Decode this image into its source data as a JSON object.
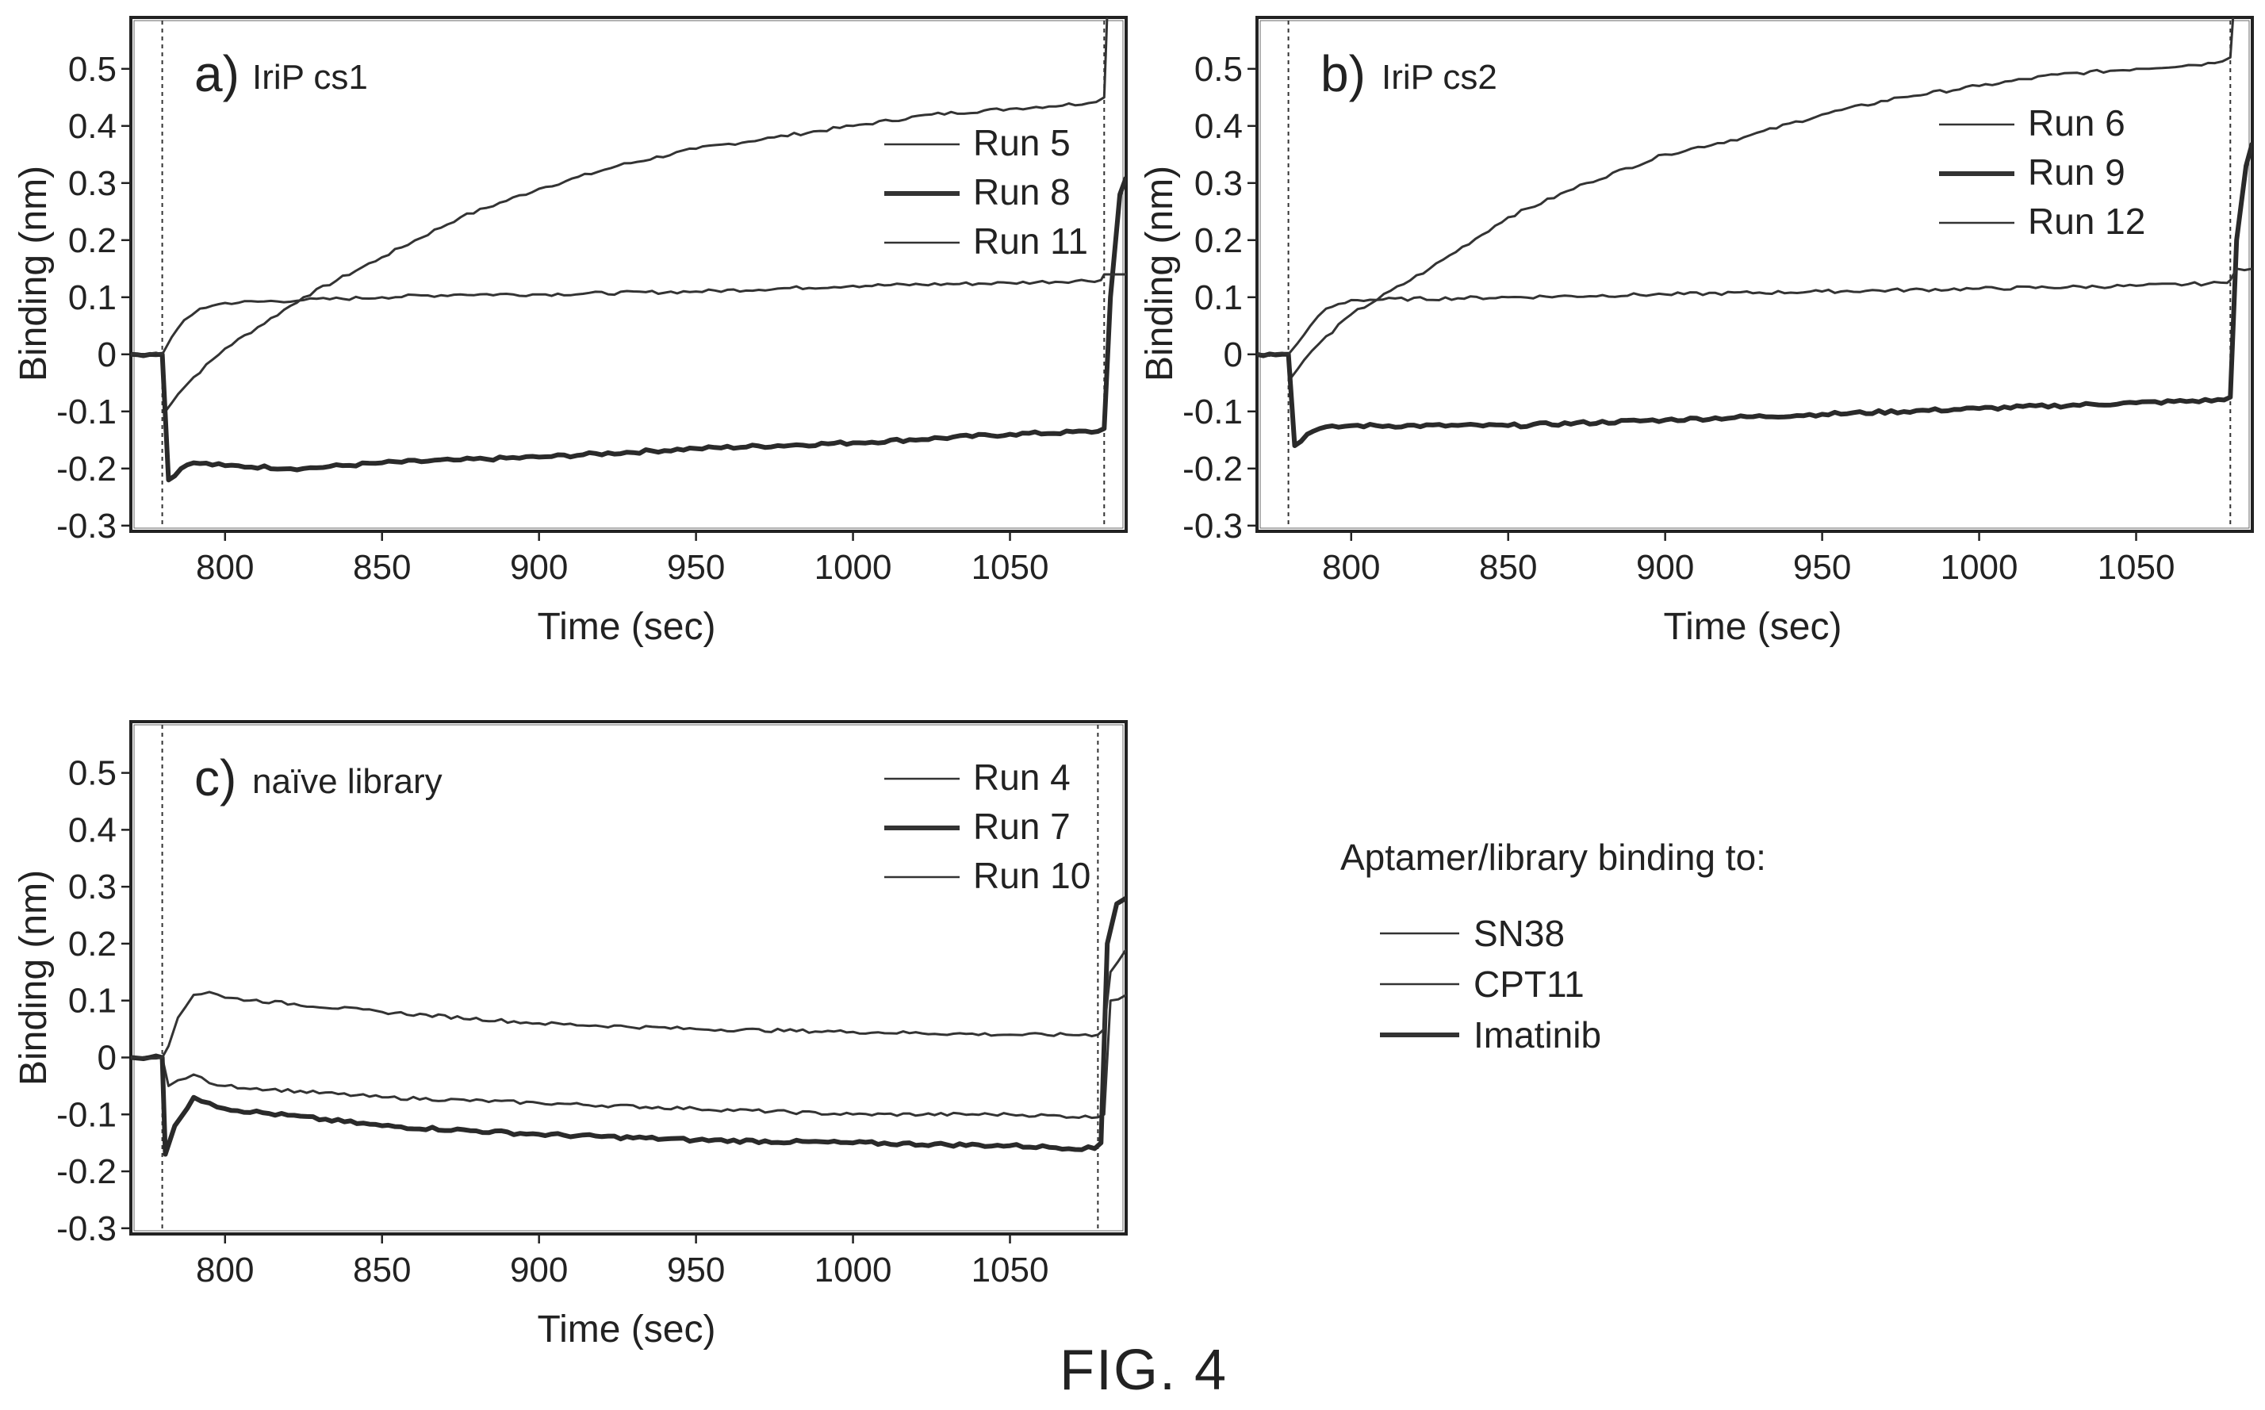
{
  "figure_label": "FIG. 4",
  "shared_legend": {
    "title": "Aptamer/library binding to:",
    "entries": [
      {
        "label": "SN38",
        "style": "thin"
      },
      {
        "label": "CPT11",
        "style": "thin"
      },
      {
        "label": "Imatinib",
        "style": "thick"
      }
    ]
  },
  "chart_data": [
    {
      "type": "line",
      "panel_letter": "a)",
      "panel_title": "IriP cs1",
      "xlabel": "Time (sec)",
      "ylabel": "Binding (nm)",
      "xlim": [
        770,
        1087
      ],
      "ylim": [
        -0.31,
        0.59
      ],
      "x_ticks": [
        800,
        850,
        900,
        950,
        1000,
        1050
      ],
      "y_ticks": [
        -0.3,
        -0.2,
        -0.1,
        0,
        0.1,
        0.2,
        0.3,
        0.4,
        0.5
      ],
      "y_tick_labels": [
        "-0.3",
        "-0.2",
        "-0.1",
        "0",
        "0.1",
        "0.2",
        "0.3",
        "0.4",
        "0.5"
      ],
      "vlines": [
        780,
        1080
      ],
      "legend": [
        "Run 5",
        "Run 8",
        "Run 11"
      ],
      "series": [
        {
          "name": "Run 5",
          "style": "thin",
          "x": [
            770,
            780,
            781,
            785,
            790,
            800,
            825,
            850,
            875,
            900,
            925,
            950,
            975,
            1000,
            1025,
            1050,
            1075,
            1080,
            1081,
            1087
          ],
          "y": [
            0,
            0,
            -0.1,
            -0.07,
            -0.04,
            0.01,
            0.1,
            0.17,
            0.24,
            0.29,
            0.33,
            0.36,
            0.38,
            0.4,
            0.42,
            0.43,
            0.44,
            0.45,
            0.6,
            0.6
          ]
        },
        {
          "name": "Run 8",
          "style": "thick",
          "x": [
            770,
            780,
            782,
            786,
            790,
            800,
            825,
            850,
            875,
            900,
            950,
            1000,
            1050,
            1078,
            1080,
            1082,
            1085,
            1087
          ],
          "y": [
            0,
            0,
            -0.22,
            -0.2,
            -0.19,
            -0.195,
            -0.2,
            -0.19,
            -0.185,
            -0.18,
            -0.165,
            -0.155,
            -0.14,
            -0.135,
            -0.13,
            0.1,
            0.28,
            0.31
          ]
        },
        {
          "name": "Run 11",
          "style": "thin",
          "x": [
            770,
            780,
            783,
            787,
            792,
            800,
            825,
            850,
            875,
            900,
            950,
            1000,
            1050,
            1079,
            1080,
            1082,
            1087
          ],
          "y": [
            0,
            0,
            0.03,
            0.06,
            0.08,
            0.09,
            0.095,
            0.1,
            0.105,
            0.105,
            0.11,
            0.12,
            0.125,
            0.13,
            0.14,
            0.14,
            0.14
          ]
        }
      ]
    },
    {
      "type": "line",
      "panel_letter": "b)",
      "panel_title": "IriP cs2",
      "xlabel": "Time (sec)",
      "ylabel": "Binding (nm)",
      "xlim": [
        770,
        1087
      ],
      "ylim": [
        -0.31,
        0.59
      ],
      "x_ticks": [
        800,
        850,
        900,
        950,
        1000,
        1050
      ],
      "y_ticks": [
        -0.3,
        -0.2,
        -0.1,
        0,
        0.1,
        0.2,
        0.3,
        0.4,
        0.5
      ],
      "y_tick_labels": [
        "-0.3",
        "-0.2",
        "-0.1",
        "0",
        "0.1",
        "0.2",
        "0.3",
        "0.4",
        "0.5"
      ],
      "vlines": [
        780,
        1080
      ],
      "legend": [
        "Run 6",
        "Run 9",
        "Run 12"
      ],
      "series": [
        {
          "name": "Run 6",
          "style": "thin",
          "x": [
            770,
            780,
            781,
            785,
            790,
            800,
            825,
            850,
            875,
            900,
            925,
            950,
            975,
            1000,
            1025,
            1050,
            1075,
            1080,
            1081,
            1087
          ],
          "y": [
            0,
            0,
            -0.04,
            -0.01,
            0.02,
            0.07,
            0.15,
            0.24,
            0.3,
            0.35,
            0.38,
            0.42,
            0.45,
            0.47,
            0.49,
            0.5,
            0.51,
            0.52,
            0.6,
            0.6
          ]
        },
        {
          "name": "Run 9",
          "style": "thick",
          "x": [
            770,
            780,
            782,
            786,
            790,
            800,
            850,
            900,
            950,
            1000,
            1050,
            1078,
            1080,
            1082,
            1085,
            1087
          ],
          "y": [
            0,
            0,
            -0.16,
            -0.14,
            -0.13,
            -0.125,
            -0.125,
            -0.115,
            -0.105,
            -0.095,
            -0.085,
            -0.08,
            -0.075,
            0.2,
            0.33,
            0.37
          ]
        },
        {
          "name": "Run 12",
          "style": "thin",
          "x": [
            770,
            780,
            783,
            787,
            792,
            800,
            850,
            900,
            950,
            1000,
            1050,
            1079,
            1080,
            1082,
            1087
          ],
          "y": [
            0,
            0,
            0.02,
            0.05,
            0.08,
            0.095,
            0.1,
            0.105,
            0.11,
            0.115,
            0.12,
            0.125,
            0.13,
            0.15,
            0.15
          ]
        }
      ]
    },
    {
      "type": "line",
      "panel_letter": "c)",
      "panel_title": "naïve library",
      "xlabel": "Time (sec)",
      "ylabel": "Binding (nm)",
      "xlim": [
        770,
        1087
      ],
      "ylim": [
        -0.31,
        0.59
      ],
      "x_ticks": [
        800,
        850,
        900,
        950,
        1000,
        1050
      ],
      "y_ticks": [
        -0.3,
        -0.2,
        -0.1,
        0,
        0.1,
        0.2,
        0.3,
        0.4,
        0.5
      ],
      "y_tick_labels": [
        "-0.3",
        "-0.2",
        "-0.1",
        "0",
        "0.1",
        "0.2",
        "0.3",
        "0.4",
        "0.5"
      ],
      "vlines": [
        780,
        1078
      ],
      "legend": [
        "Run 4",
        "Run 7",
        "Run 10"
      ],
      "series": [
        {
          "name": "Run 4",
          "style": "thin",
          "x": [
            770,
            780,
            782,
            785,
            790,
            795,
            800,
            850,
            900,
            950,
            1000,
            1050,
            1078,
            1080,
            1082,
            1087
          ],
          "y": [
            0,
            0,
            -0.05,
            -0.04,
            -0.03,
            -0.045,
            -0.05,
            -0.07,
            -0.08,
            -0.09,
            -0.1,
            -0.1,
            -0.105,
            -0.1,
            0.1,
            0.11
          ]
        },
        {
          "name": "Run 7",
          "style": "thick",
          "x": [
            770,
            780,
            781,
            784,
            790,
            795,
            800,
            850,
            900,
            950,
            1000,
            1050,
            1077,
            1079,
            1081,
            1084,
            1087
          ],
          "y": [
            0,
            0,
            -0.17,
            -0.12,
            -0.07,
            -0.08,
            -0.09,
            -0.12,
            -0.135,
            -0.145,
            -0.15,
            -0.155,
            -0.16,
            -0.15,
            0.2,
            0.27,
            0.28
          ]
        },
        {
          "name": "Run 10",
          "style": "thin",
          "x": [
            770,
            780,
            782,
            785,
            790,
            795,
            800,
            850,
            900,
            950,
            1000,
            1050,
            1078,
            1080,
            1082,
            1087
          ],
          "y": [
            0,
            0,
            0.02,
            0.07,
            0.11,
            0.115,
            0.105,
            0.08,
            0.06,
            0.05,
            0.045,
            0.04,
            0.04,
            0.05,
            0.15,
            0.19
          ]
        }
      ]
    }
  ]
}
